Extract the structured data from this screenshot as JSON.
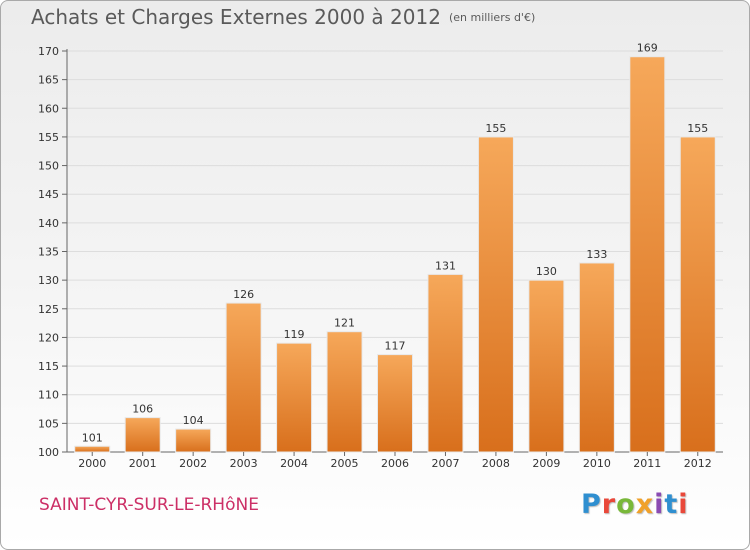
{
  "title": "Achats et Charges Externes 2000 à 2012",
  "subtitle": "(en milliers d'€)",
  "place": "SAINT-CYR-SUR-LE-RHôNE",
  "logo": {
    "letters": [
      "P",
      "r",
      "o",
      "x",
      "i",
      "t",
      "i"
    ],
    "colors": [
      "#2f8fd0",
      "#e9483a",
      "#79b83a",
      "#f0a12a",
      "#8b4bb3",
      "#2f8fd0",
      "#e9483a"
    ]
  },
  "colors": {
    "bar_top": "#f6a85a",
    "bar_bottom": "#d86f1c",
    "grid": "#dddddd",
    "axis": "#666666",
    "place": "#cc2f66"
  },
  "chart_data": {
    "type": "bar",
    "categories": [
      "2000",
      "2001",
      "2002",
      "2003",
      "2004",
      "2005",
      "2006",
      "2007",
      "2008",
      "2009",
      "2010",
      "2011",
      "2012"
    ],
    "values": [
      101,
      106,
      104,
      126,
      119,
      121,
      117,
      131,
      155,
      130,
      133,
      169,
      155
    ],
    "ylim": [
      100,
      170
    ],
    "yticks": [
      100,
      105,
      110,
      115,
      120,
      125,
      130,
      135,
      140,
      145,
      150,
      155,
      160,
      165,
      170
    ],
    "grid": true,
    "legend": "none"
  }
}
